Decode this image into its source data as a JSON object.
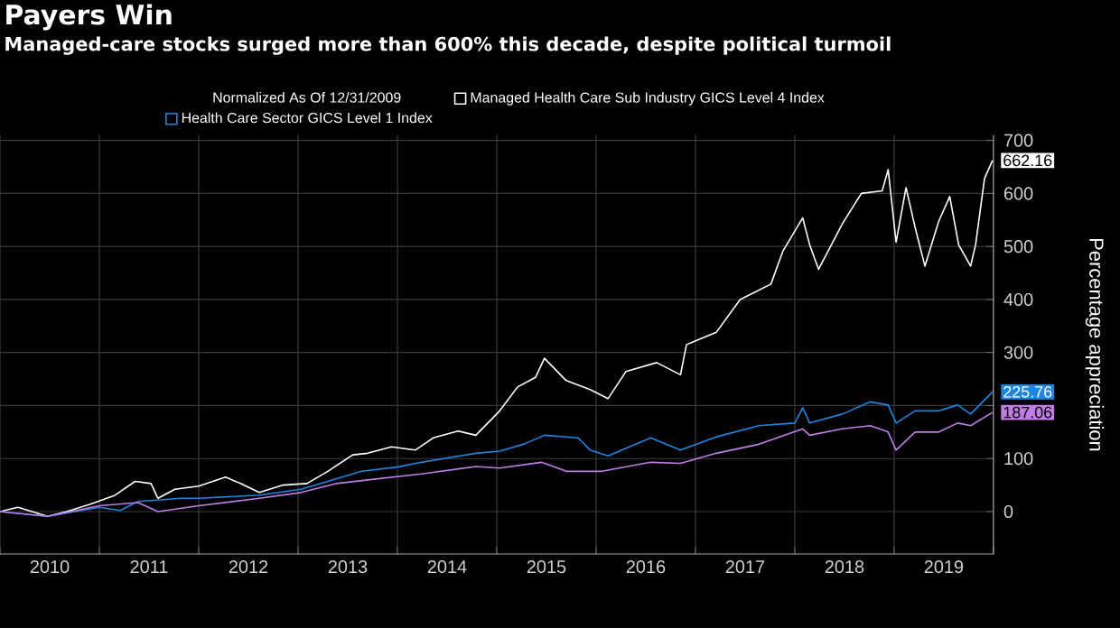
{
  "chart_data": {
    "type": "line",
    "title": "Payers Win",
    "subtitle": "Managed-care stocks surged more than 600% this decade, despite political turmoil",
    "legend_title": "Normalized As Of 12/31/2009",
    "ylabel": "Percentage appreciation",
    "xlim": [
      2010,
      2020
    ],
    "ylim": [
      -80,
      710
    ],
    "xticks": [
      {
        "value": 2010,
        "label": null
      },
      {
        "value": 2011,
        "label": null
      },
      {
        "value": 2012,
        "label": null
      },
      {
        "value": 2013,
        "label": null
      },
      {
        "value": 2014,
        "label": null
      },
      {
        "value": 2015,
        "label": null
      },
      {
        "value": 2016,
        "label": null
      },
      {
        "value": 2017,
        "label": null
      },
      {
        "value": 2018,
        "label": null
      },
      {
        "value": 2019,
        "label": null
      },
      {
        "value": 2020,
        "label": null
      },
      {
        "value": 2010.5,
        "label": "2010"
      },
      {
        "value": 2011.5,
        "label": "2011"
      },
      {
        "value": 2012.5,
        "label": "2012"
      },
      {
        "value": 2013.5,
        "label": "2013"
      },
      {
        "value": 2014.5,
        "label": "2014"
      },
      {
        "value": 2015.5,
        "label": "2015"
      },
      {
        "value": 2016.5,
        "label": "2016"
      },
      {
        "value": 2017.5,
        "label": "2017"
      },
      {
        "value": 2018.5,
        "label": "2018"
      },
      {
        "value": 2019.5,
        "label": "2019"
      }
    ],
    "yticks": [
      0,
      100,
      {
        "value": 200,
        "label": null
      },
      300,
      400,
      500,
      600,
      700
    ],
    "grid": true,
    "legend": "top",
    "series": [
      {
        "name": "Managed Health Care Sub Industry GICS Level 4 Index",
        "color": "#ffffff",
        "x": [
          2010.0,
          2010.18,
          2010.48,
          2010.67,
          2010.91,
          2011.15,
          2011.36,
          2011.52,
          2011.59,
          2011.76,
          2012.0,
          2012.27,
          2012.42,
          2012.61,
          2012.85,
          2013.09,
          2013.3,
          2013.55,
          2013.7,
          2013.94,
          2014.18,
          2014.36,
          2014.61,
          2014.79,
          2015.03,
          2015.21,
          2015.39,
          2015.48,
          2015.7,
          2015.94,
          2016.12,
          2016.3,
          2016.61,
          2016.85,
          2016.91,
          2017.21,
          2017.45,
          2017.76,
          2017.88,
          2018.08,
          2018.15,
          2018.24,
          2018.48,
          2018.67,
          2018.88,
          2018.94,
          2019.02,
          2019.12,
          2019.21,
          2019.31,
          2019.45,
          2019.56,
          2019.65,
          2019.77,
          2019.82,
          2019.91,
          2019.99
        ],
        "values": [
          0,
          8,
          -9,
          0,
          14,
          30,
          57,
          53,
          25,
          42,
          48,
          65,
          53,
          36,
          50,
          53,
          76,
          107,
          110,
          122,
          116,
          139,
          152,
          144,
          190,
          235,
          253,
          289,
          247,
          230,
          213,
          264,
          281,
          258,
          315,
          338,
          400,
          429,
          491,
          554,
          503,
          457,
          543,
          600,
          605,
          645,
          508,
          611,
          537,
          463,
          548,
          594,
          503,
          463,
          503,
          628,
          662.16
        ],
        "value_labels": [
          null,
          null,
          null,
          null,
          null,
          null,
          null,
          null,
          null,
          null,
          null,
          null,
          null,
          null,
          null,
          null,
          null,
          null,
          null,
          null,
          null,
          null,
          null,
          null,
          null,
          null,
          null,
          null,
          null,
          null,
          null,
          null,
          null,
          null,
          null,
          null,
          null,
          null,
          null,
          null,
          null,
          null,
          null,
          null,
          null,
          null,
          null,
          null,
          null,
          null,
          null,
          null,
          null,
          null,
          null,
          null,
          "662.16"
        ]
      },
      {
        "name": "Health Care Sector GICS Level 1 Index",
        "color": "#1f86e0",
        "x": [
          2010.0,
          2010.48,
          2011.0,
          2011.21,
          2011.39,
          2011.82,
          2012.0,
          2012.61,
          2013.03,
          2013.3,
          2013.64,
          2014.0,
          2014.24,
          2014.79,
          2015.03,
          2015.27,
          2015.48,
          2015.82,
          2015.94,
          2016.12,
          2016.55,
          2016.85,
          2017.21,
          2017.64,
          2018.0,
          2018.08,
          2018.15,
          2018.48,
          2018.76,
          2018.94,
          2019.02,
          2019.21,
          2019.45,
          2019.64,
          2019.77,
          2019.99
        ],
        "values": [
          0,
          -9,
          8,
          2,
          19,
          25,
          25,
          31,
          42,
          57,
          76,
          84,
          93,
          110,
          114,
          127,
          144,
          139,
          116,
          105,
          139,
          116,
          141,
          162,
          167,
          196,
          167,
          184,
          207,
          201,
          167,
          190,
          190,
          201,
          184,
          225.76
        ],
        "value_labels": [
          null,
          null,
          null,
          null,
          null,
          null,
          null,
          null,
          null,
          null,
          null,
          null,
          null,
          null,
          null,
          null,
          null,
          null,
          null,
          null,
          null,
          null,
          null,
          null,
          null,
          null,
          null,
          null,
          null,
          null,
          null,
          null,
          null,
          null,
          null,
          "225.76"
        ]
      },
      {
        "color": "#c17de6",
        "x": [
          2010.0,
          2010.48,
          2011.0,
          2011.39,
          2011.59,
          2012.0,
          2012.61,
          2013.03,
          2013.39,
          2013.76,
          2014.24,
          2014.79,
          2015.03,
          2015.45,
          2015.7,
          2016.06,
          2016.55,
          2016.85,
          2017.21,
          2017.64,
          2018.08,
          2018.15,
          2018.48,
          2018.76,
          2018.94,
          2019.02,
          2019.21,
          2019.45,
          2019.64,
          2019.77,
          2019.99
        ],
        "values": [
          0,
          -9,
          11,
          17,
          0,
          11,
          25,
          36,
          53,
          61,
          71,
          85,
          82,
          93,
          76,
          76,
          93,
          91,
          110,
          127,
          156,
          144,
          156,
          162,
          150,
          116,
          150,
          150,
          167,
          162,
          187.06
        ],
        "value_labels": [
          null,
          null,
          null,
          null,
          null,
          null,
          null,
          null,
          null,
          null,
          null,
          null,
          null,
          null,
          null,
          null,
          null,
          null,
          null,
          null,
          null,
          null,
          null,
          null,
          null,
          null,
          null,
          null,
          null,
          null,
          "187.06"
        ]
      }
    ]
  }
}
